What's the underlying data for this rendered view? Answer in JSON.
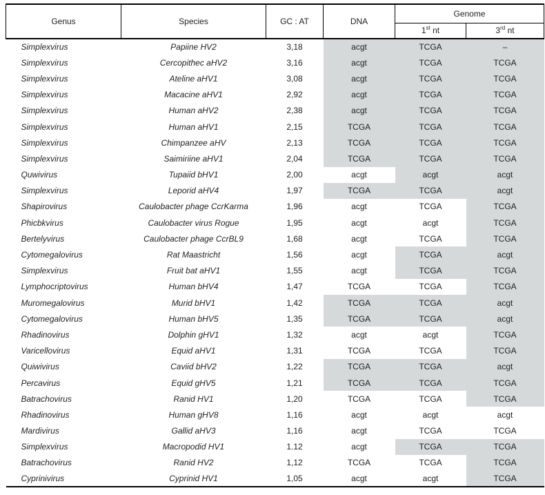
{
  "header": {
    "genus": "Genus",
    "species": "Species",
    "gc_at": "GC : AT",
    "dna": "DNA",
    "genome": "Genome",
    "nt1": {
      "num": "1",
      "sup": "st",
      "rest": " nt"
    },
    "nt3": {
      "num": "3",
      "sup": "rd",
      "rest": " nt"
    }
  },
  "colors": {
    "shade": "#d6d9da",
    "border": "#000000",
    "text": "#1f1f1f"
  },
  "rows": [
    {
      "genus": "Simplexvirus",
      "species": "Papiine HV2",
      "gc_at": "3,18",
      "dna": "acgt",
      "nt1": "TCGA",
      "nt3": "–",
      "shade_dna": true,
      "shade_nt1": true,
      "shade_nt3": true
    },
    {
      "genus": "Simplexvirus",
      "species": "Cercopithec aHV2",
      "gc_at": "3,16",
      "dna": "acgt",
      "nt1": "TCGA",
      "nt3": "TCGA",
      "shade_dna": true,
      "shade_nt1": true,
      "shade_nt3": true
    },
    {
      "genus": "Simplexvirus",
      "species": "Ateline aHV1",
      "gc_at": "3,08",
      "dna": "acgt",
      "nt1": "TCGA",
      "nt3": "TCGA",
      "shade_dna": true,
      "shade_nt1": true,
      "shade_nt3": true
    },
    {
      "genus": "Simplexvirus",
      "species": "Macacine aHV1",
      "gc_at": "2,92",
      "dna": "acgt",
      "nt1": "TCGA",
      "nt3": "TCGA",
      "shade_dna": true,
      "shade_nt1": true,
      "shade_nt3": true
    },
    {
      "genus": "Simplexvirus",
      "species": "Human aHV2",
      "gc_at": "2,38",
      "dna": "acgt",
      "nt1": "TCGA",
      "nt3": "TCGA",
      "shade_dna": true,
      "shade_nt1": true,
      "shade_nt3": true
    },
    {
      "genus": "Simplexvirus",
      "species": "Human aHV1",
      "gc_at": "2,15",
      "dna": "TCGA",
      "nt1": "TCGA",
      "nt3": "TCGA",
      "shade_dna": true,
      "shade_nt1": true,
      "shade_nt3": true
    },
    {
      "genus": "Simplexvirus",
      "species": "Chimpanzee aHV",
      "gc_at": "2,13",
      "dna": "TCGA",
      "nt1": "TCGA",
      "nt3": "TCGA",
      "shade_dna": true,
      "shade_nt1": true,
      "shade_nt3": true
    },
    {
      "genus": "Simplexvirus",
      "species": "Saimiriine aHV1",
      "gc_at": "2,04",
      "dna": "TCGA",
      "nt1": "TCGA",
      "nt3": "TCGA",
      "shade_dna": true,
      "shade_nt1": true,
      "shade_nt3": true
    },
    {
      "genus": "Quwivirus",
      "species": "Tupaiid bHV1",
      "gc_at": "2,00",
      "dna": "acgt",
      "nt1": "acgt",
      "nt3": "acgt",
      "shade_dna": false,
      "shade_nt1": true,
      "shade_nt3": true
    },
    {
      "genus": "Simplexvirus",
      "species": "Leporid aHV4",
      "gc_at": "1,97",
      "dna": "TCGA",
      "nt1": "TCGA",
      "nt3": "acgt",
      "shade_dna": true,
      "shade_nt1": true,
      "shade_nt3": true
    },
    {
      "genus": "Shapirovirus",
      "species": "Caulobacter phage CcrKarma",
      "gc_at": "1,96",
      "dna": "acgt",
      "nt1": "TCGA",
      "nt3": "TCGA",
      "shade_dna": false,
      "shade_nt1": false,
      "shade_nt3": true
    },
    {
      "genus": "Phicbkvirus",
      "species": "Caulobacter virus Rogue",
      "gc_at": "1,95",
      "dna": "acgt",
      "nt1": "acgt",
      "nt3": "TCGA",
      "shade_dna": false,
      "shade_nt1": false,
      "shade_nt3": true
    },
    {
      "genus": "Bertelyvirus",
      "species": "Caulobacter phage CcrBL9",
      "gc_at": "1,68",
      "dna": "acgt",
      "nt1": "TCGA",
      "nt3": "TCGA",
      "shade_dna": false,
      "shade_nt1": false,
      "shade_nt3": true
    },
    {
      "genus": "Cytomegalovirus",
      "species": "Rat Maastricht",
      "gc_at": "1,56",
      "dna": "acgt",
      "nt1": "TCGA",
      "nt3": "acgt",
      "shade_dna": false,
      "shade_nt1": true,
      "shade_nt3": true
    },
    {
      "genus": "Simplexvirus",
      "species": "Fruit bat aHV1",
      "gc_at": "1,55",
      "dna": "acgt",
      "nt1": "TCGA",
      "nt3": "TCGA",
      "shade_dna": false,
      "shade_nt1": true,
      "shade_nt3": true
    },
    {
      "genus": "Lymphocriptovirus",
      "species": "Human bHV4",
      "gc_at": "1,47",
      "dna": "TCGA",
      "nt1": "TCGA",
      "nt3": "TCGA",
      "shade_dna": false,
      "shade_nt1": false,
      "shade_nt3": true
    },
    {
      "genus": "Muromegalovirus",
      "species": "Murid bHV1",
      "gc_at": "1,42",
      "dna": "TCGA",
      "nt1": "TCGA",
      "nt3": "acgt",
      "shade_dna": true,
      "shade_nt1": true,
      "shade_nt3": true
    },
    {
      "genus": "Cytomegalovirus",
      "species": "Human bHV5",
      "gc_at": "1,35",
      "dna": "TCGA",
      "nt1": "TCGA",
      "nt3": "acgt",
      "shade_dna": true,
      "shade_nt1": true,
      "shade_nt3": true
    },
    {
      "genus": "Rhadinovirus",
      "species": "Dolphin gHV1",
      "gc_at": "1,32",
      "dna": "acgt",
      "nt1": "acgt",
      "nt3": "TCGA",
      "shade_dna": false,
      "shade_nt1": false,
      "shade_nt3": true
    },
    {
      "genus": "Varicellovirus",
      "species": "Equid aHV1",
      "gc_at": "1,31",
      "dna": "TCGA",
      "nt1": "TCGA",
      "nt3": "TCGA",
      "shade_dna": false,
      "shade_nt1": false,
      "shade_nt3": true
    },
    {
      "genus": "Quiwivirus",
      "species": "Caviid bHV2",
      "gc_at": "1,22",
      "dna": "TCGA",
      "nt1": "TCGA",
      "nt3": "acgt",
      "shade_dna": true,
      "shade_nt1": true,
      "shade_nt3": true
    },
    {
      "genus": "Percavirus",
      "species": "Equid gHV5",
      "gc_at": "1,21",
      "dna": "TCGA",
      "nt1": "TCGA",
      "nt3": "TCGA",
      "shade_dna": true,
      "shade_nt1": true,
      "shade_nt3": true
    },
    {
      "genus": "Batrachovirus",
      "species": "Ranid HV1",
      "gc_at": "1,20",
      "dna": "TCGA",
      "nt1": "TCGA",
      "nt3": "TCGA",
      "shade_dna": false,
      "shade_nt1": false,
      "shade_nt3": true
    },
    {
      "genus": "Rhadinovirus",
      "species": "Human gHV8",
      "gc_at": "1,16",
      "dna": "acgt",
      "nt1": "acgt",
      "nt3": "acgt",
      "shade_dna": false,
      "shade_nt1": false,
      "shade_nt3": false
    },
    {
      "genus": "Mardivirus",
      "species": "Gallid aHV3",
      "gc_at": "1,16",
      "dna": "acgt",
      "nt1": "TCGA",
      "nt3": "TCGA",
      "shade_dna": false,
      "shade_nt1": false,
      "shade_nt3": false
    },
    {
      "genus": "Simplexvirus",
      "species": "Macropodid HV1",
      "gc_at": "1.12",
      "dna": "acgt",
      "nt1": "TCGA",
      "nt3": "TCGA",
      "shade_dna": false,
      "shade_nt1": true,
      "shade_nt3": true
    },
    {
      "genus": "Batrachovirus",
      "species": "Ranid HV2",
      "gc_at": "1,12",
      "dna": "TCGA",
      "nt1": "TCGA",
      "nt3": "TCGA",
      "shade_dna": false,
      "shade_nt1": false,
      "shade_nt3": true
    },
    {
      "genus": "Cyprinivirus",
      "species": "Cyprinid HV1",
      "gc_at": "1,05",
      "dna": "acgt",
      "nt1": "acgt",
      "nt3": "TCGA",
      "shade_dna": false,
      "shade_nt1": false,
      "shade_nt3": true
    }
  ]
}
